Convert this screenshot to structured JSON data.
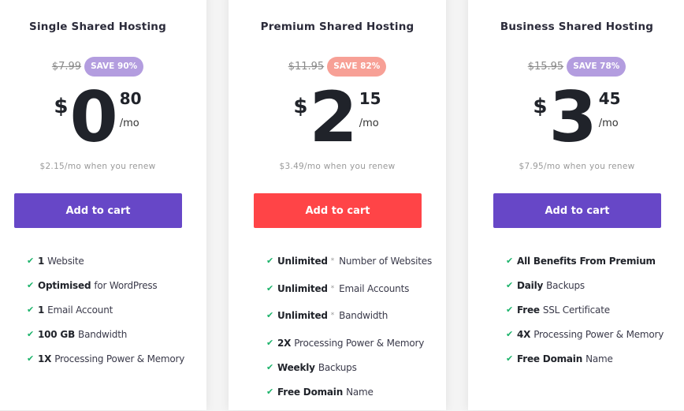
{
  "colors": {
    "purple": "#6747c7",
    "red": "#ff4447",
    "badge_purple": "#b39ddf",
    "badge_salmon": "#f7a096",
    "check": "#1bb36a"
  },
  "plans": [
    {
      "title": "Single Shared Hosting",
      "old_price": "$7.99",
      "save": "SAVE 90%",
      "currency": "$",
      "whole": "0",
      "cents": "80",
      "per": "/mo",
      "renew": "$2.15/mo when you renew",
      "button": "Add to cart",
      "features": [
        {
          "bold": "1",
          "text": "Website"
        },
        {
          "bold": "Optimised",
          "text": "for WordPress"
        },
        {
          "bold": "1",
          "text": "Email Account"
        },
        {
          "bold": "100 GB",
          "text": "Bandwidth"
        },
        {
          "bold": "1X",
          "text": "Processing Power & Memory"
        }
      ]
    },
    {
      "title": "Premium Shared Hosting",
      "old_price": "$11.95",
      "save": "SAVE 82%",
      "currency": "$",
      "whole": "2",
      "cents": "15",
      "per": "/mo",
      "renew": "$3.49/mo when you renew",
      "button": "Add to cart",
      "features": [
        {
          "bold": "Unlimited",
          "star": "*",
          "text": "Number of Websites"
        },
        {
          "bold": "Unlimited",
          "star": "*",
          "text": "Email Accounts"
        },
        {
          "bold": "Unlimited",
          "star": "*",
          "text": "Bandwidth"
        },
        {
          "bold": "2X",
          "text": "Processing Power & Memory"
        },
        {
          "bold": "Weekly",
          "text": "Backups"
        },
        {
          "bold": "Free Domain",
          "text": "Name"
        }
      ]
    },
    {
      "title": "Business Shared Hosting",
      "old_price": "$15.95",
      "save": "SAVE 78%",
      "currency": "$",
      "whole": "3",
      "cents": "45",
      "per": "/mo",
      "renew": "$7.95/mo when you renew",
      "button": "Add to cart",
      "features": [
        {
          "bold": "All Benefits From Premium",
          "text": ""
        },
        {
          "bold": "Daily",
          "text": "Backups"
        },
        {
          "bold": "Free",
          "text": "SSL Certificate"
        },
        {
          "bold": "4X",
          "text": "Processing Power & Memory"
        },
        {
          "bold": "Free Domain",
          "text": "Name"
        }
      ]
    }
  ]
}
